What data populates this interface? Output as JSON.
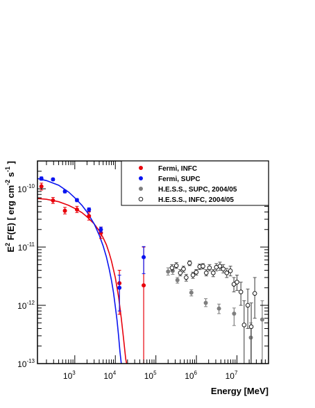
{
  "chart_data": {
    "type": "scatter",
    "x_scale": "log",
    "y_scale": "log",
    "xlim": [
      120,
      60000000
    ],
    "ylim": [
      1e-13,
      3e-10
    ],
    "xlabel": "Energy [MeV]",
    "ylabel_parts": {
      "prefix": "E",
      "prefix_sup": "2",
      "middle": " F(E) [ erg cm",
      "cm_sup": "-2",
      "s": " s",
      "s_sup": "-1",
      "suffix": " ]"
    },
    "x_ticks": [
      {
        "value": 1000,
        "base": "10",
        "exp": "3"
      },
      {
        "value": 10000,
        "base": "10",
        "exp": "4"
      },
      {
        "value": 100000,
        "base": "10",
        "exp": "5"
      },
      {
        "value": 1000000,
        "base": "10",
        "exp": "6"
      },
      {
        "value": 10000000,
        "base": "10",
        "exp": "7"
      }
    ],
    "y_ticks": [
      {
        "value": 1e-10,
        "base": "10",
        "exp": "-10"
      },
      {
        "value": 1e-11,
        "base": "10",
        "exp": "-11"
      },
      {
        "value": 1e-12,
        "base": "10",
        "exp": "-12"
      },
      {
        "value": 1e-13,
        "base": "10",
        "exp": "-13"
      }
    ],
    "legend_position": "top-right",
    "series": [
      {
        "name": "Fermi, INFC",
        "color": "#e8000b",
        "marker": "filled-circle",
        "points": [
          {
            "x": 150,
            "y": 1.1e-10,
            "lo": 9.5e-11,
            "hi": 1.25e-10
          },
          {
            "x": 290,
            "y": 6.3e-11,
            "lo": 5.6e-11,
            "hi": 7.1e-11
          },
          {
            "x": 570,
            "y": 4.2e-11,
            "lo": 3.7e-11,
            "hi": 4.8e-11
          },
          {
            "x": 1130,
            "y": 4.4e-11,
            "lo": 3.9e-11,
            "hi": 5e-11
          },
          {
            "x": 2240,
            "y": 3.4e-11,
            "lo": 2.9e-11,
            "hi": 4e-11
          },
          {
            "x": 4400,
            "y": 1.75e-11,
            "lo": 1.4e-11,
            "hi": 2.2e-11
          },
          {
            "x": 12600,
            "y": 2.4e-12,
            "lo": 7e-13,
            "hi": 4e-12
          },
          {
            "x": 50000,
            "y": 2.2e-12,
            "lo": 1e-13,
            "hi": 1e-11
          }
        ]
      },
      {
        "name": "Fermi, SUPC",
        "color": "#0a14f0",
        "marker": "filled-circle",
        "points": [
          {
            "x": 150,
            "y": 1.5e-10,
            "lo": 1.4e-10,
            "hi": 1.6e-10
          },
          {
            "x": 290,
            "y": 1.45e-10,
            "lo": 1.38e-10,
            "hi": 1.52e-10
          },
          {
            "x": 570,
            "y": 9e-11,
            "lo": 8.5e-11,
            "hi": 9.5e-11
          },
          {
            "x": 1130,
            "y": 6.4e-11,
            "lo": 6e-11,
            "hi": 6.8e-11
          },
          {
            "x": 2240,
            "y": 4.4e-11,
            "lo": 4.1e-11,
            "hi": 4.7e-11
          },
          {
            "x": 4400,
            "y": 2e-11,
            "lo": 1.8e-11,
            "hi": 2.2e-11
          },
          {
            "x": 12600,
            "y": 2e-12,
            "lo": 8e-13,
            "hi": 3.3e-12
          },
          {
            "x": 50000,
            "y": 6.7e-12,
            "lo": 3.5e-12,
            "hi": 1.02e-11
          }
        ]
      },
      {
        "name": "H.E.S.S., SUPC, 2004/05",
        "color": "#7f7f7f",
        "marker": "filled-circle",
        "points": [
          {
            "x": 200000,
            "y": 3.8e-12,
            "lo": 3.3e-12,
            "hi": 4.4e-12
          },
          {
            "x": 260000,
            "y": 3.9e-12,
            "lo": 3.4e-12,
            "hi": 4.5e-12
          },
          {
            "x": 340000,
            "y": 2.7e-12,
            "lo": 2.4e-12,
            "hi": 3e-12
          },
          {
            "x": 750000,
            "y": 1.65e-12,
            "lo": 1.45e-12,
            "hi": 1.85e-12
          },
          {
            "x": 1700000,
            "y": 1.1e-12,
            "lo": 9.5e-13,
            "hi": 1.3e-12
          },
          {
            "x": 3600000,
            "y": 8.8e-13,
            "lo": 7.2e-13,
            "hi": 1.05e-12
          },
          {
            "x": 8500000,
            "y": 7.2e-13,
            "lo": 4.5e-13,
            "hi": 9e-13
          },
          {
            "x": 22000000,
            "y": 2.8e-13,
            "lo": 1e-13,
            "hi": 5e-13
          },
          {
            "x": 42000000,
            "y": 5.7e-13,
            "lo": 1e-13,
            "hi": 1.2e-12
          }
        ]
      },
      {
        "name": "H.E.S.S., INFC, 2004/05",
        "color": "#000000",
        "marker": "open-circle",
        "points": [
          {
            "x": 250000,
            "y": 4.4e-12,
            "lo": 3.9e-12,
            "hi": 5e-12
          },
          {
            "x": 320000,
            "y": 4.8e-12,
            "lo": 4.3e-12,
            "hi": 5.4e-12
          },
          {
            "x": 400000,
            "y": 3.6e-12,
            "lo": 3.2e-12,
            "hi": 4.1e-12
          },
          {
            "x": 480000,
            "y": 4.2e-12,
            "lo": 3.7e-12,
            "hi": 4.7e-12
          },
          {
            "x": 560000,
            "y": 3e-12,
            "lo": 2.6e-12,
            "hi": 3.4e-12
          },
          {
            "x": 680000,
            "y": 5.3e-12,
            "lo": 4.8e-12,
            "hi": 5.8e-12
          },
          {
            "x": 820000,
            "y": 3.3e-12,
            "lo": 2.9e-12,
            "hi": 3.7e-12
          },
          {
            "x": 990000,
            "y": 3.7e-12,
            "lo": 3.3e-12,
            "hi": 4.1e-12
          },
          {
            "x": 1200000,
            "y": 4.6e-12,
            "lo": 4.1e-12,
            "hi": 5.1e-12
          },
          {
            "x": 1450000,
            "y": 4.7e-12,
            "lo": 4.2e-12,
            "hi": 5.2e-12
          },
          {
            "x": 1750000,
            "y": 3.6e-12,
            "lo": 3.2e-12,
            "hi": 4.1e-12
          },
          {
            "x": 2100000,
            "y": 4.4e-12,
            "lo": 3.9e-12,
            "hi": 5e-12
          },
          {
            "x": 2600000,
            "y": 3.6e-12,
            "lo": 3.1e-12,
            "hi": 4.1e-12
          },
          {
            "x": 3100000,
            "y": 4.5e-12,
            "lo": 3.9e-12,
            "hi": 5.2e-12
          },
          {
            "x": 3800000,
            "y": 4.7e-12,
            "lo": 4e-12,
            "hi": 5.5e-12
          },
          {
            "x": 4600000,
            "y": 4.2e-12,
            "lo": 3.6e-12,
            "hi": 5e-12
          },
          {
            "x": 5600000,
            "y": 3.6e-12,
            "lo": 3e-12,
            "hi": 4.3e-12
          },
          {
            "x": 6900000,
            "y": 3.9e-12,
            "lo": 3.2e-12,
            "hi": 4.7e-12
          },
          {
            "x": 8400000,
            "y": 2.3e-12,
            "lo": 1.7e-12,
            "hi": 3e-12
          },
          {
            "x": 10000000,
            "y": 2.5e-12,
            "lo": 1.8e-12,
            "hi": 3.3e-12
          },
          {
            "x": 12500000,
            "y": 1.7e-12,
            "lo": 1e-12,
            "hi": 2.5e-12
          },
          {
            "x": 15000000,
            "y": 4.6e-13,
            "lo": 1e-13,
            "hi": 1.2e-12
          },
          {
            "x": 18500000,
            "y": 1e-12,
            "lo": 4e-13,
            "hi": 1.9e-12
          },
          {
            "x": 22500000,
            "y": 4.3e-13,
            "lo": 1e-13,
            "hi": 1.1e-12
          },
          {
            "x": 27500000,
            "y": 1.6e-12,
            "lo": 6e-13,
            "hi": 3e-12
          }
        ]
      }
    ],
    "fits": [
      {
        "series": "Fermi, INFC",
        "color": "#e8000b",
        "curve": [
          [
            120,
            6.8e-11
          ],
          [
            200,
            6.6e-11
          ],
          [
            400,
            6e-11
          ],
          [
            700,
            5.2e-11
          ],
          [
            1000,
            4.6e-11
          ],
          [
            1500,
            3.9e-11
          ],
          [
            2000,
            3.3e-11
          ],
          [
            3000,
            2.5e-11
          ],
          [
            4000,
            1.9e-11
          ],
          [
            5000,
            1.45e-11
          ],
          [
            6000,
            1.1e-11
          ],
          [
            7000,
            8e-12
          ],
          [
            8000,
            5.8e-12
          ],
          [
            10000,
            3e-12
          ],
          [
            12000,
            1.4e-12
          ],
          [
            14000,
            6e-13
          ],
          [
            16000,
            2.6e-13
          ],
          [
            18000,
            1.2e-13
          ],
          [
            19000,
            1e-13
          ]
        ]
      },
      {
        "series": "Fermi, SUPC",
        "color": "#0a14f0",
        "curve": [
          [
            120,
            1.5e-10
          ],
          [
            200,
            1.38e-10
          ],
          [
            400,
            1.15e-10
          ],
          [
            700,
            8.8e-11
          ],
          [
            1000,
            7e-11
          ],
          [
            1500,
            5.2e-11
          ],
          [
            2000,
            4e-11
          ],
          [
            3000,
            2.5e-11
          ],
          [
            4000,
            1.6e-11
          ],
          [
            5000,
            1.05e-11
          ],
          [
            6000,
            6.8e-12
          ],
          [
            7000,
            4.3e-12
          ],
          [
            8000,
            2.7e-12
          ],
          [
            9000,
            1.65e-12
          ],
          [
            10000,
            9.5e-13
          ],
          [
            11000,
            5.5e-13
          ],
          [
            12000,
            3e-13
          ],
          [
            13000,
            1.6e-13
          ],
          [
            14000,
            1e-13
          ]
        ]
      }
    ]
  }
}
